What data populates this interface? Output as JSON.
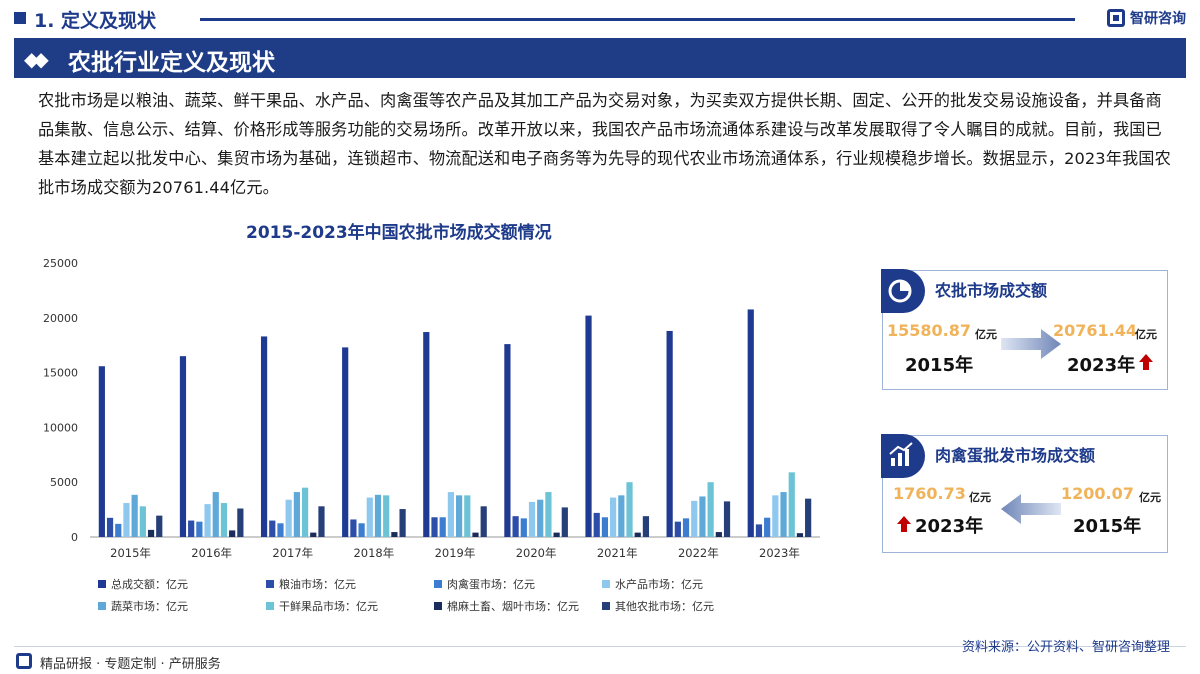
{
  "header": {
    "section": "1. 定义及现状",
    "brand": "智研咨询",
    "banner_title": "农批行业定义及现状"
  },
  "intro_text": "农批市场是以粮油、蔬菜、鲜干果品、水产品、肉禽蛋等农产品及其加工产品为交易对象，为买卖双方提供长期、固定、公开的批发交易设施设备，并具备商品集散、信息公示、结算、价格形成等服务功能的交易场所。改革开放以来，我国农产品市场流通体系建设与改革发展取得了令人瞩目的成就。目前，我国已基本建立起以批发中心、集贸市场为基础，连锁超市、物流配送和电子商务等为先导的现代农业市场流通体系，行业规模稳步增长。数据显示，2023年我国农批市场成交额为20761.44亿元。",
  "chart_data": {
    "type": "bar",
    "title": "2015-2023年中国农批市场成交额情况",
    "categories": [
      "2015年",
      "2016年",
      "2017年",
      "2018年",
      "2019年",
      "2020年",
      "2021年",
      "2022年",
      "2023年"
    ],
    "ylim": [
      0,
      25000
    ],
    "yticks": [
      "0",
      "5000",
      "10000",
      "15000",
      "20000",
      "25000"
    ],
    "series": [
      {
        "name": "总成交额：亿元",
        "color": "#1f3a93",
        "values": [
          15580.87,
          16500,
          18300,
          17300,
          18700,
          17600,
          20200,
          18800,
          20761.44
        ]
      },
      {
        "name": "粮油市场：亿元",
        "color": "#2d4ea8",
        "values": [
          1750,
          1500,
          1500,
          1600,
          1800,
          1900,
          2200,
          1400,
          1150
        ]
      },
      {
        "name": "肉禽蛋市场：亿元",
        "color": "#3c7dd0",
        "values": [
          1200.07,
          1400,
          1250,
          1250,
          1800,
          1700,
          1800,
          1700,
          1760.73
        ]
      },
      {
        "name": "水产品市场：亿元",
        "color": "#8ec8ef",
        "values": [
          3100,
          3000,
          3400,
          3600,
          4100,
          3200,
          3600,
          3300,
          3800
        ]
      },
      {
        "name": "蔬菜市场：亿元",
        "color": "#5fa9d8",
        "values": [
          3850,
          4100,
          4100,
          3850,
          3800,
          3400,
          3800,
          3700,
          4100
        ]
      },
      {
        "name": "干鲜果品市场：亿元",
        "color": "#6cc3d6",
        "values": [
          2800,
          3100,
          4500,
          3800,
          3800,
          4100,
          5000,
          5000,
          5900
        ]
      },
      {
        "name": "棉麻土畜、烟叶市场：亿元",
        "color": "#1a2c5c",
        "values": [
          650,
          600,
          400,
          450,
          400,
          400,
          400,
          450,
          350
        ]
      },
      {
        "name": "其他农批市场：亿元",
        "color": "#263f78",
        "values": [
          1950,
          2600,
          2800,
          2550,
          2800,
          2700,
          1900,
          3250,
          3500
        ]
      }
    ]
  },
  "card1": {
    "title": "农批市场成交额",
    "left_value": "15580.87",
    "left_unit": "亿元",
    "left_year": "2015年",
    "right_value": "20761.44",
    "right_unit": "亿元",
    "right_year": "2023年"
  },
  "card2": {
    "title": "肉禽蛋批发市场成交额",
    "left_value": "1760.73",
    "left_unit": "亿元",
    "left_year": "2023年",
    "right_value": "1200.07",
    "right_unit": "亿元",
    "right_year": "2015年"
  },
  "footer": {
    "source": "资料来源：公开资料、智研咨询整理",
    "tagline": "精品研报 · 专题定制 · 产研服务"
  },
  "colors": {
    "brand": "#1e3a8a",
    "accent": "#f0b35a",
    "up_arrow": "#c00000"
  }
}
